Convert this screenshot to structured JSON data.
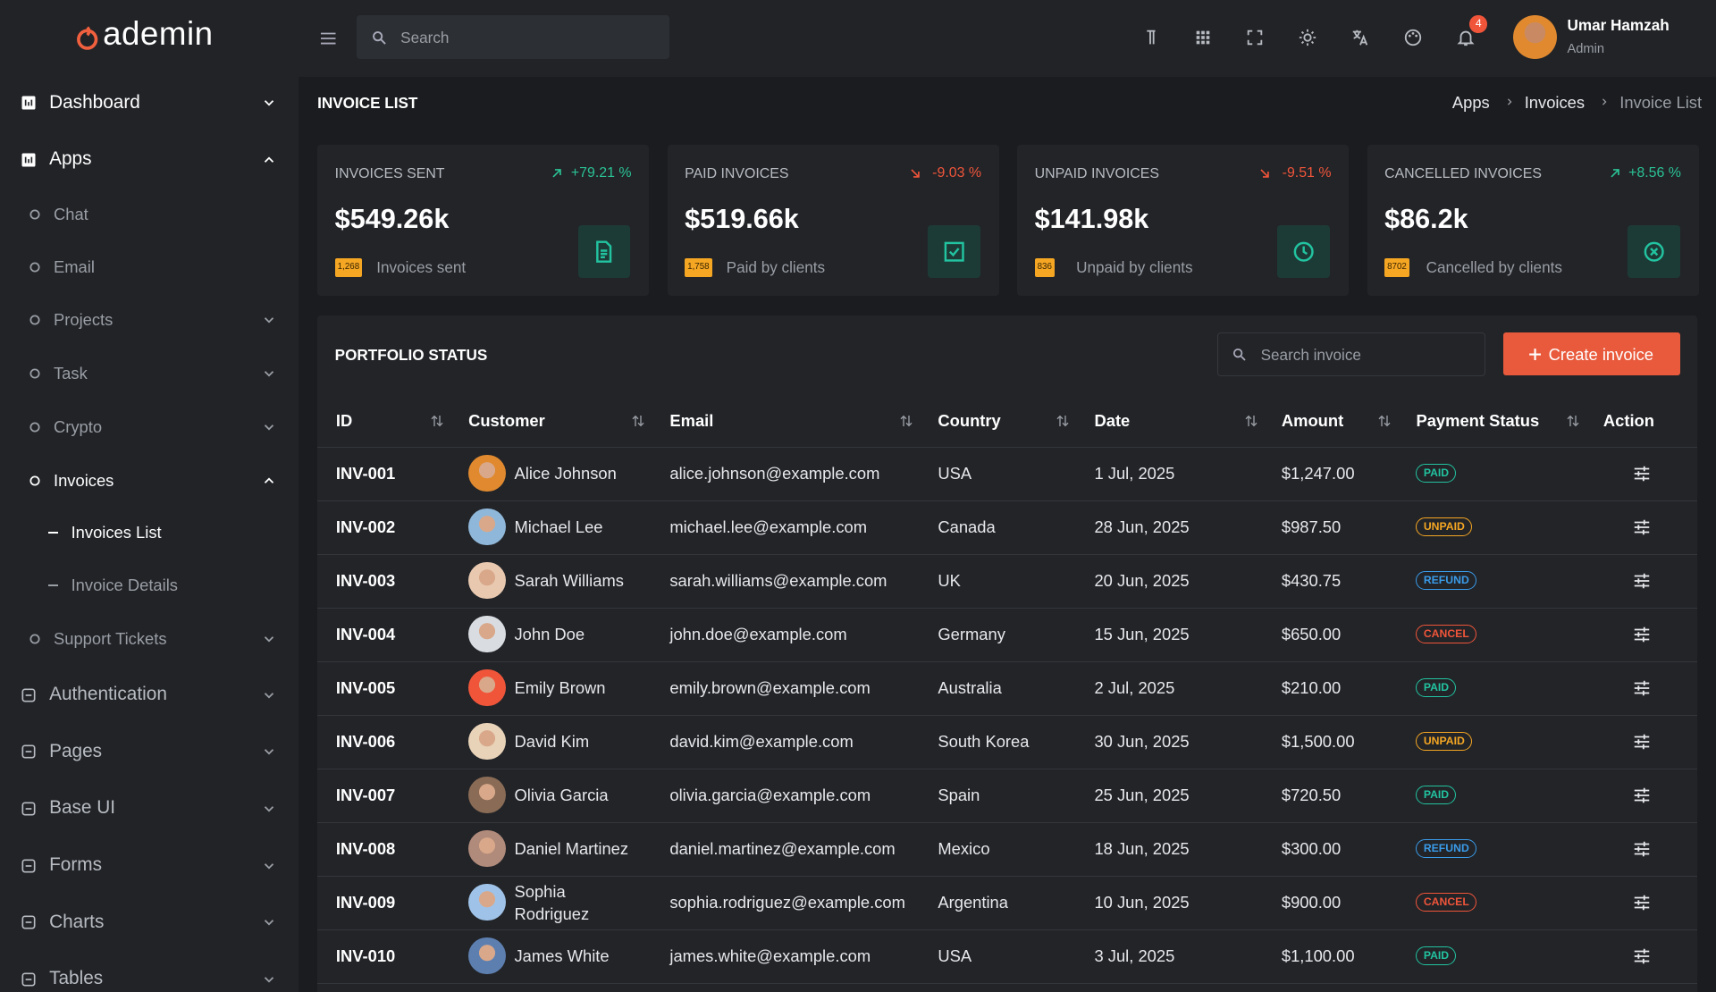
{
  "header": {
    "logo": "ademin",
    "search_placeholder": "Search",
    "notifications": "4",
    "user_name": "Umar Hamzah",
    "user_role": "Admin"
  },
  "sidebar": [
    {
      "label": "Dashboard",
      "kind": "section",
      "chevron": "down"
    },
    {
      "label": "Apps",
      "kind": "section",
      "chevron": "up"
    },
    {
      "label": "Chat",
      "kind": "item"
    },
    {
      "label": "Email",
      "kind": "item"
    },
    {
      "label": "Projects",
      "kind": "item",
      "chevron": "down"
    },
    {
      "label": "Task",
      "kind": "item",
      "chevron": "down"
    },
    {
      "label": "Crypto",
      "kind": "item",
      "chevron": "down"
    },
    {
      "label": "Invoices",
      "kind": "item",
      "chevron": "up",
      "active": true
    },
    {
      "label": "Invoices List",
      "kind": "sub",
      "active": true
    },
    {
      "label": "Invoice Details",
      "kind": "sub"
    },
    {
      "label": "Support Tickets",
      "kind": "item",
      "chevron": "down"
    },
    {
      "label": "Authentication",
      "kind": "section",
      "chevron": "down"
    },
    {
      "label": "Pages",
      "kind": "section",
      "chevron": "down"
    },
    {
      "label": "Base UI",
      "kind": "section",
      "chevron": "down"
    },
    {
      "label": "Forms",
      "kind": "section",
      "chevron": "down"
    },
    {
      "label": "Charts",
      "kind": "section",
      "chevron": "down"
    },
    {
      "label": "Tables",
      "kind": "section",
      "chevron": "down"
    }
  ],
  "page": {
    "title": "INVOICE LIST",
    "breadcrumb": [
      "Apps",
      "Invoices",
      "Invoice List"
    ]
  },
  "stats": [
    {
      "title": "INVOICES SENT",
      "change": "+79.21 %",
      "trend": "up",
      "value": "$549.26k",
      "count": "1,268",
      "caption": "Invoices sent"
    },
    {
      "title": "PAID INVOICES",
      "change": "-9.03 %",
      "trend": "down",
      "value": "$519.66k",
      "count": "1,758",
      "caption": "Paid by clients"
    },
    {
      "title": "UNPAID INVOICES",
      "change": "-9.51 %",
      "trend": "down",
      "value": "$141.98k",
      "count": "836",
      "caption": "Unpaid by clients"
    },
    {
      "title": "CANCELLED INVOICES",
      "change": "+8.56 %",
      "trend": "up",
      "value": "$86.2k",
      "count": "8702",
      "caption": "Cancelled by clients"
    }
  ],
  "table": {
    "title": "PORTFOLIO STATUS",
    "search_placeholder": "Search invoice",
    "button": "Create invoice",
    "columns": [
      "ID",
      "Customer",
      "Email",
      "Country",
      "Date",
      "Amount",
      "Payment Status",
      "Action"
    ],
    "rows": [
      [
        "INV-001",
        "Alice Johnson",
        "alice.johnson@example.com",
        "USA",
        "1 Jul, 2025",
        "$1,247.00",
        "PAID"
      ],
      [
        "INV-002",
        "Michael Lee",
        "michael.lee@example.com",
        "Canada",
        "28 Jun, 2025",
        "$987.50",
        "UNPAID"
      ],
      [
        "INV-003",
        "Sarah Williams",
        "sarah.williams@example.com",
        "UK",
        "20 Jun, 2025",
        "$430.75",
        "REFUND"
      ],
      [
        "INV-004",
        "John Doe",
        "john.doe@example.com",
        "Germany",
        "15 Jun, 2025",
        "$650.00",
        "CANCEL"
      ],
      [
        "INV-005",
        "Emily Brown",
        "emily.brown@example.com",
        "Australia",
        "2 Jul, 2025",
        "$210.00",
        "PAID"
      ],
      [
        "INV-006",
        "David Kim",
        "david.kim@example.com",
        "South Korea",
        "30 Jun, 2025",
        "$1,500.00",
        "UNPAID"
      ],
      [
        "INV-007",
        "Olivia Garcia",
        "olivia.garcia@example.com",
        "Spain",
        "25 Jun, 2025",
        "$720.50",
        "PAID"
      ],
      [
        "INV-008",
        "Daniel Martinez",
        "daniel.martinez@example.com",
        "Mexico",
        "18 Jun, 2025",
        "$300.00",
        "REFUND"
      ],
      [
        "INV-009",
        "Sophia Rodriguez",
        "sophia.rodriguez@example.com",
        "Argentina",
        "10 Jun, 2025",
        "$900.00",
        "CANCEL"
      ],
      [
        "INV-010",
        "James White",
        "james.white@example.com",
        "USA",
        "3 Jul, 2025",
        "$1,100.00",
        "PAID"
      ]
    ]
  }
}
